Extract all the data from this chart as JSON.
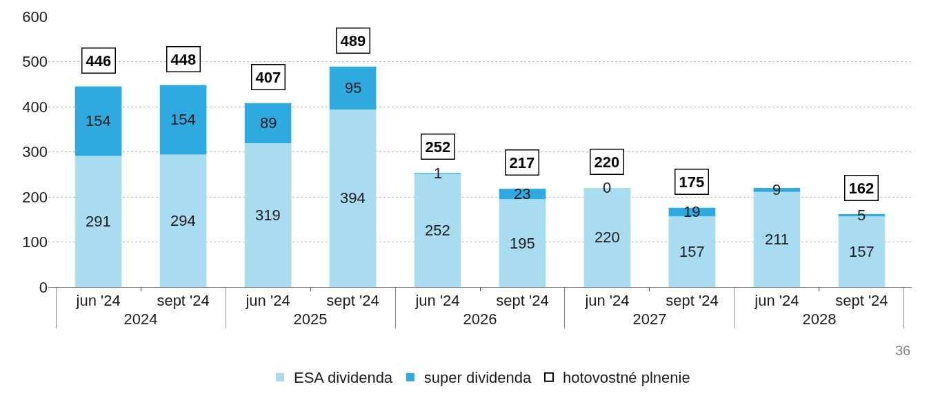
{
  "chart_data": {
    "type": "bar",
    "stacked": true,
    "categories": [
      "jun '24",
      "sept '24",
      "jun '24",
      "sept '24",
      "jun '24",
      "sept '24",
      "jun '24",
      "sept '24",
      "jun '24",
      "sept '24"
    ],
    "series": [
      {
        "name": "ESA dividenda",
        "color": "#a9dcf0",
        "values": [
          291,
          294,
          319,
          394,
          252,
          195,
          220,
          157,
          211,
          157
        ]
      },
      {
        "name": "super dividenda",
        "color": "#2eaae0",
        "values": [
          154,
          154,
          89,
          95,
          1,
          23,
          0,
          19,
          9,
          5
        ]
      },
      {
        "name": "hotovostné plnenie",
        "type": "scatter",
        "marker": "square",
        "color": "#000000",
        "values": [
          null,
          null,
          null,
          null,
          null,
          null,
          null,
          null,
          null,
          null
        ]
      }
    ],
    "totals": [
      "446",
      "448",
      "407",
      "489",
      "252",
      "217",
      "220",
      "175",
      null,
      "162"
    ],
    "annotations": [
      "2024",
      "2025",
      "2026",
      "2027",
      "2028",
      "36"
    ],
    "ylim": [
      0,
      600
    ],
    "yticks": [
      0,
      100,
      200,
      300,
      400,
      500,
      600
    ],
    "grid": "y",
    "legend": "bottom",
    "data_labels": true
  }
}
